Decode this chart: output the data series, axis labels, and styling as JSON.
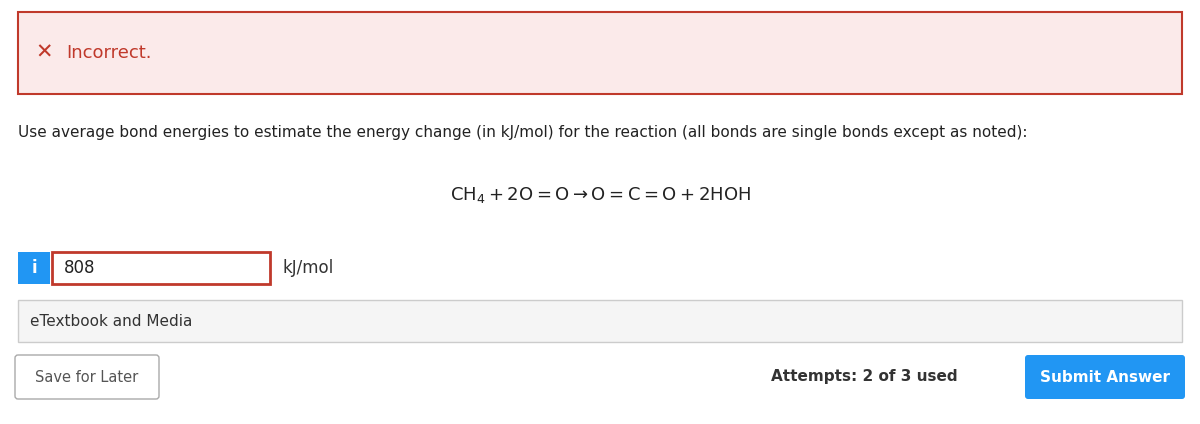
{
  "bg_color": "#ffffff",
  "error_box_bg": "#fbeaea",
  "error_box_border": "#c0392b",
  "error_icon_color": "#c0392b",
  "error_text": "Incorrect.",
  "error_text_color": "#c0392b",
  "question_text": "Use average bond energies to estimate the energy change (in kJ/mol) for the reaction (all bonds are single bonds except as noted):",
  "question_text_color": "#222222",
  "input_value": "808",
  "input_border_color": "#c0392b",
  "input_bg": "#ffffff",
  "unit_text": "kJ/mol",
  "info_btn_color": "#2196F3",
  "info_btn_text": "i",
  "etextbook_bg": "#f5f5f5",
  "etextbook_border": "#cccccc",
  "etextbook_text": "eTextbook and Media",
  "etextbook_text_color": "#333333",
  "save_btn_bg": "#ffffff",
  "save_btn_border": "#aaaaaa",
  "save_btn_text": "Save for Later",
  "save_btn_text_color": "#555555",
  "attempts_text": "Attempts: 2 of 3 used",
  "attempts_text_color": "#333333",
  "submit_btn_bg": "#2196F3",
  "submit_btn_text": "Submit Answer",
  "submit_btn_text_color": "#ffffff",
  "figsize": [
    12.0,
    4.24
  ],
  "dpi": 100
}
